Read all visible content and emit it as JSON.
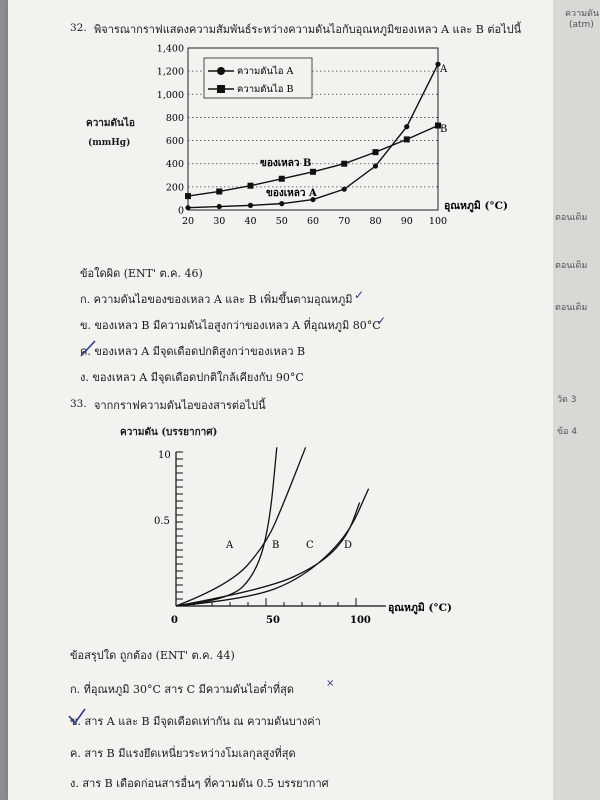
{
  "q32": {
    "number": "32.",
    "text": "พิจารณากราฟแสดงความสัมพันธ์ระหว่างความดันไอกับอุณหภูมิของเหลว A และ B ต่อไปนี้",
    "ylabel": "ความดันไอ",
    "yunit": "(mmHg)",
    "xlabel": "อุณหภูมิ (°C)",
    "legend": [
      "ความดันไอ  A",
      "ความดันไอ  B"
    ],
    "curve_label_a": "ของเหลว  A",
    "curve_label_b": "ของเหลว  B",
    "end_label_a": "A",
    "end_label_b": "B",
    "xticks": [
      "20",
      "30",
      "40",
      "50",
      "60",
      "70",
      "80",
      "90",
      "100"
    ],
    "yticks": [
      "0",
      "200",
      "400",
      "600",
      "800",
      "1,000",
      "1,200",
      "1,400"
    ],
    "prompt": "ข้อใดผิด  (ENT' ต.ค. 46)",
    "choices": [
      "ก.  ความดันไอของของเหลว A และ B เพิ่มขึ้นตามอุณหภูมิ",
      "ข.  ของเหลว  B มีความดันไอสูงกว่าของเหลว  A  ที่อุณหภูมิ 80°C",
      "ค.  ของเหลว  A  มีจุดเดือดปกติสูงกว่าของเหลว   B",
      "ง.  ของเหลว  A  มีจุดเดือดปกติใกล้เคียงกับ 90°C"
    ]
  },
  "q33": {
    "number": "33.",
    "text": "จากกราฟความดันไอของสารต่อไปนี้",
    "ylabel": "ความดัน (บรรยากาศ)",
    "xlabel": "อุณหภูมิ (°C)",
    "yticks": [
      "10",
      "0.5"
    ],
    "xticks": [
      "0",
      "50",
      "100"
    ],
    "curve_labels": [
      "A",
      "B",
      "C",
      "D"
    ],
    "prompt": "ข้อสรุปใด  ถูกต้อง  (ENT' ต.ค. 44)",
    "choices": [
      "ก.  ที่อุณหภูมิ 30°C สาร  C  มีความดันไอต่ำที่สุด",
      "ข.  สาร  A  และ  B มีจุดเดือดเท่ากัน  ณ  ความดันบางค่า",
      "ค.  สาร  B  มีแรงยึดเหนี่ยวระหว่างโมเลกุลสูงที่สุด",
      "ง.  สาร  B  เดือดก่อนสารอื่นๆ ที่ความดัน  0.5  บรรยากาศ"
    ]
  },
  "edge": {
    "top": "ความดัน",
    "top2": "(atm)",
    "side1": "ตอนเดิม",
    "side2": "ตอนเดิม",
    "side3": "ตอนเดิม",
    "side4": "วัด 3",
    "side5": "ข้อ 4"
  },
  "chart_data": [
    {
      "type": "line",
      "title": "",
      "xlabel": "อุณหภูมิ (°C)",
      "ylabel": "ความดันไอ (mmHg)",
      "xlim": [
        20,
        100
      ],
      "ylim": [
        0,
        1400
      ],
      "grid": "horizontal dotted",
      "legend_position": "top-left",
      "x": [
        20,
        30,
        40,
        50,
        60,
        70,
        80,
        90,
        100
      ],
      "series": [
        {
          "name": "ความดันไอ  A",
          "marker": "circle",
          "values": [
            20,
            30,
            40,
            55,
            90,
            180,
            380,
            720,
            1260
          ]
        },
        {
          "name": "ความดันไอ  B",
          "marker": "square",
          "values": [
            120,
            160,
            210,
            270,
            330,
            400,
            500,
            610,
            730
          ]
        }
      ]
    },
    {
      "type": "line",
      "title": "",
      "xlabel": "อุณหภูมิ (°C)",
      "ylabel": "ความดัน (บรรยากาศ)",
      "xlim": [
        0,
        100
      ],
      "series": [
        {
          "name": "A",
          "x": [
            0,
            30,
            50,
            60,
            72
          ],
          "y": [
            0,
            0.15,
            0.45,
            0.75,
            1.15
          ]
        },
        {
          "name": "B",
          "x": [
            0,
            30,
            45,
            52,
            56
          ],
          "y": [
            0,
            0.04,
            0.25,
            0.6,
            1.15
          ]
        },
        {
          "name": "C",
          "x": [
            0,
            50,
            80,
            95,
            102
          ],
          "y": [
            0,
            0.12,
            0.3,
            0.5,
            0.75
          ]
        },
        {
          "name": "D",
          "x": [
            0,
            40,
            70,
            95,
            107
          ],
          "y": [
            0,
            0.05,
            0.2,
            0.5,
            0.85
          ]
        }
      ]
    }
  ]
}
